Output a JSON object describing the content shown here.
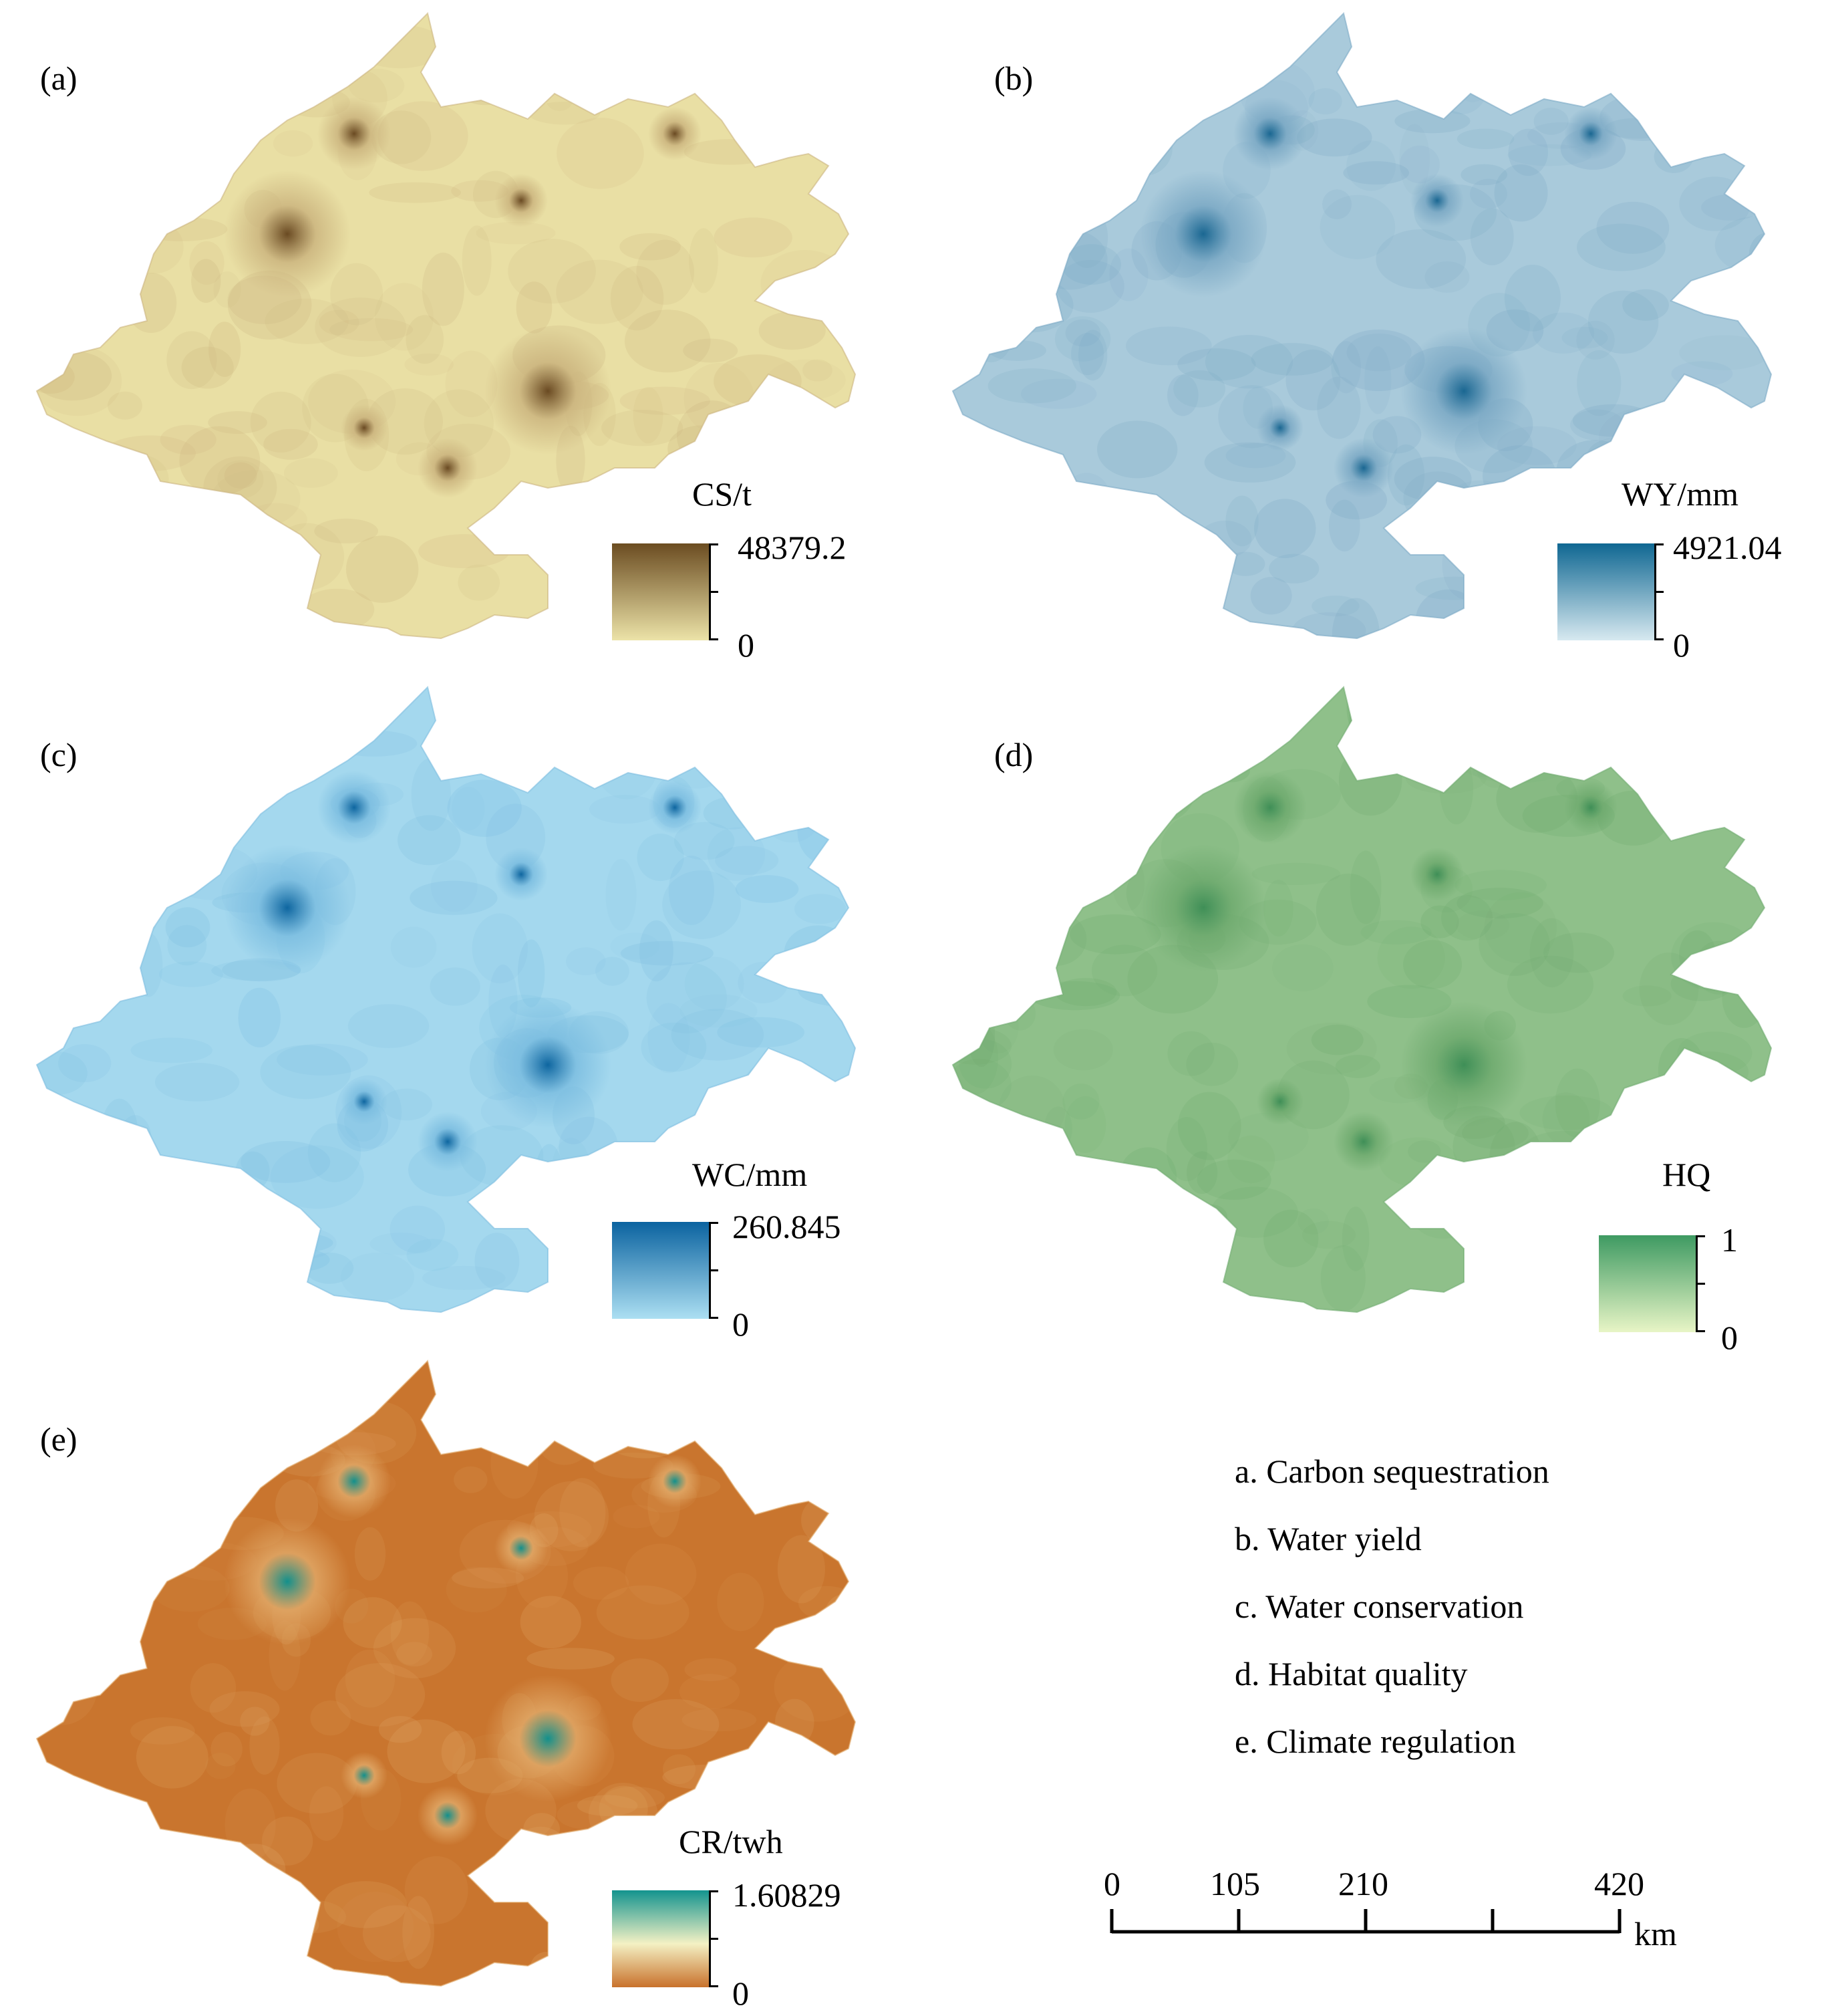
{
  "panels": [
    {
      "label": "(a)",
      "legend_title": "CS/t",
      "max_label": "48379.2",
      "min_label": "0",
      "colors": {
        "base": "#e9dfa4",
        "mid": "#cbb47e",
        "dark": "#6a4a22",
        "ramp_top": "#6b4c21",
        "ramp_bottom": "#ece3a8"
      }
    },
    {
      "label": "(b)",
      "legend_title": "WY/mm",
      "max_label": "4921.04",
      "min_label": "0",
      "colors": {
        "base": "#a9cadb",
        "mid": "#7aa8c4",
        "dark": "#1a6792",
        "ramp_top": "#0f6792",
        "ramp_bottom": "#d7e9f0"
      }
    },
    {
      "label": "(c)",
      "legend_title": "WC/mm",
      "max_label": "260.845",
      "min_label": "0",
      "colors": {
        "base": "#a4d8ee",
        "mid": "#7bbde0",
        "dark": "#0e66a0",
        "ramp_top": "#0b63a0",
        "ramp_bottom": "#acdff2"
      }
    },
    {
      "label": "(d)",
      "legend_title": "HQ",
      "max_label": "1",
      "min_label": "0",
      "colors": {
        "base": "#8fc08a",
        "mid": "#6eaa6e",
        "dark": "#3f8f57",
        "ramp_top": "#3e9a62",
        "ramp_bottom": "#e8f5c6"
      }
    },
    {
      "label": "(e)",
      "legend_title": "CR/twh",
      "max_label": "1.60829",
      "min_label": "0",
      "colors": {
        "base": "#c9752e",
        "mid": "#e0a766",
        "dark": "#12908c",
        "ramp_top": "#13938e",
        "ramp_mid": "#f4f1c4",
        "ramp_bottom": "#c8722c"
      }
    }
  ],
  "key": [
    "a. Carbon sequestration",
    "b. Water yield",
    "c. Water conservation",
    "d. Habitat quality",
    "e. Climate regulation"
  ],
  "scale_bar": {
    "ticks": [
      "0",
      "105",
      "210",
      "420"
    ],
    "unit": "km",
    "values": [
      0,
      105,
      210,
      315,
      420
    ],
    "labeled": [
      0,
      105,
      210,
      420
    ]
  }
}
